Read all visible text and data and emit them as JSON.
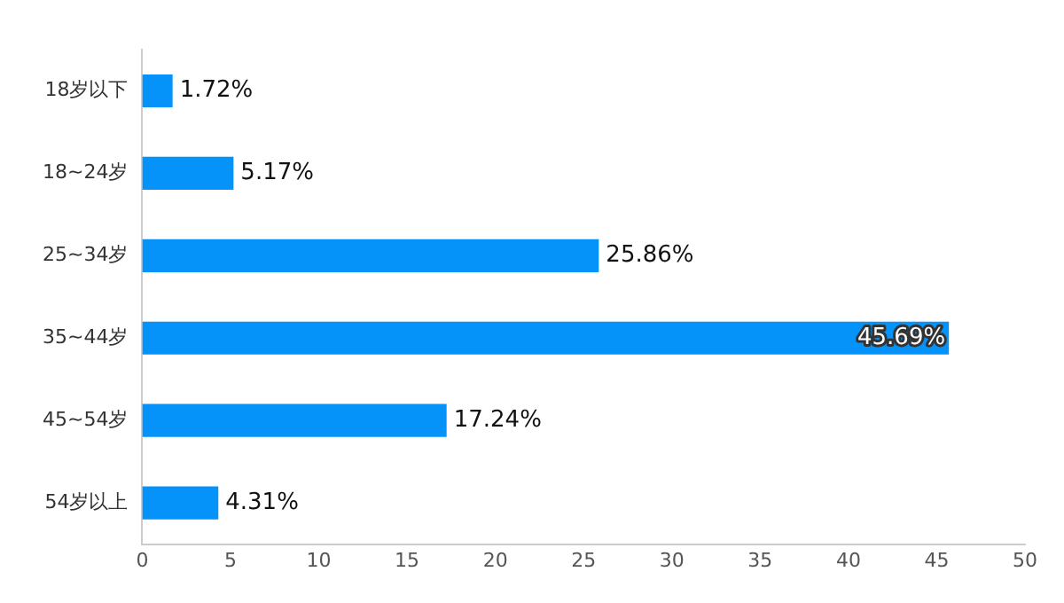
{
  "chart_data": {
    "type": "bar",
    "orientation": "horizontal",
    "categories": [
      "18岁以下",
      "18~24岁",
      "25~34岁",
      "35~44岁",
      "45~54岁",
      "54岁以上"
    ],
    "values": [
      1.72,
      5.17,
      25.86,
      45.69,
      17.24,
      4.31
    ],
    "value_labels": [
      "1.72%",
      "5.17%",
      "25.86%",
      "45.69%",
      "17.24%",
      "4.31%"
    ],
    "color": "#0593f9",
    "xlim": [
      0,
      50
    ],
    "xticks": [
      0,
      5,
      10,
      15,
      20,
      25,
      30,
      35,
      40,
      45,
      50
    ],
    "grid": false,
    "legend": false
  }
}
